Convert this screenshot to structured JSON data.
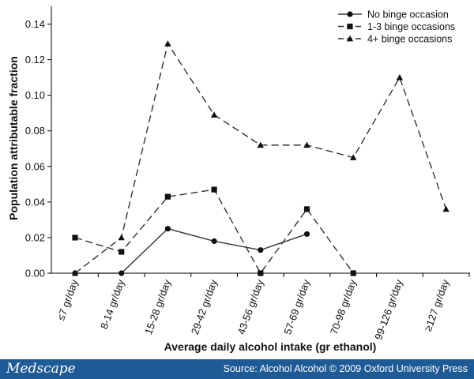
{
  "chart_data": {
    "type": "line",
    "title": "",
    "xlabel": "Average daily alcohol intake (gr ethanol)",
    "ylabel": "Population attributable fraction",
    "categories": [
      "≤7 gr/day",
      "8-14 gr/day",
      "15-28 gr/day",
      "29-42 gr/day",
      "43-56 gr/day",
      "57-69 gr/day",
      "70-98 gr/day",
      "99-126 gr/day",
      "≥127 gr/day"
    ],
    "ylim": [
      0,
      0.15
    ],
    "yticks": [
      "0.00",
      "0.02",
      "0.04",
      "0.06",
      "0.08",
      "0.10",
      "0.12",
      "0.14"
    ],
    "grid": false,
    "legend_position": "top-right",
    "series": [
      {
        "name": "No binge occasion",
        "marker": "circle",
        "line": "solid",
        "values": [
          0.0,
          0.0,
          0.025,
          0.018,
          0.013,
          0.022,
          null,
          null,
          null
        ]
      },
      {
        "name": "1-3 binge occasions",
        "marker": "square",
        "line": "dashed",
        "values": [
          0.02,
          0.012,
          0.043,
          0.047,
          0.0,
          0.036,
          0.0,
          null,
          null
        ]
      },
      {
        "name": "4+ binge occasions",
        "marker": "triangle",
        "line": "dashed",
        "values": [
          0.0,
          0.02,
          0.129,
          0.089,
          0.072,
          0.072,
          0.065,
          0.11,
          0.036
        ]
      }
    ]
  },
  "footer": {
    "brand": "Medscape",
    "source": "Source: Alcohol Alcohol © 2009 Oxford University Press"
  }
}
